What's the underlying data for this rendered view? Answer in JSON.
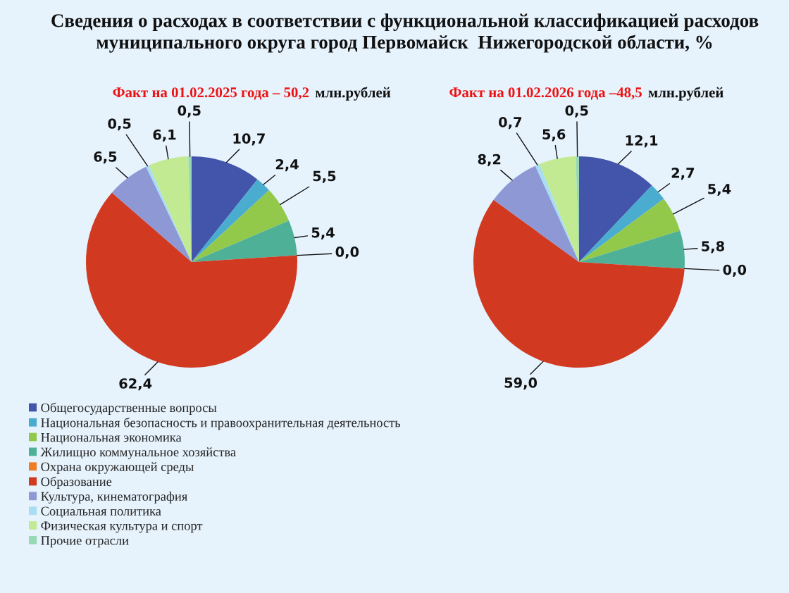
{
  "chart_data": [
    {
      "type": "pie",
      "title": "Сведения о расходах в соответствии с функциональной классификацией расходов\nмуниципального округа город Первомайск  Нижегородской области, %",
      "subtitle": "Факт на 01.02.2025 года – 50,2",
      "annotations": [
        "млн.рублей"
      ],
      "legend": "bottom",
      "categories": [
        "Общегосударственные вопросы",
        "Национальная безопасность и правоохранительная деятельность",
        "Национальная экономика",
        "Жилищно коммунальное хозяйства",
        "Охрана окружающей среды",
        "Образование",
        "Культура, кинематография",
        "Социальная политика",
        "Физическая культура и спорт",
        "Прочие отрасли"
      ],
      "values": [
        10.7,
        2.4,
        5.5,
        5.4,
        0.0,
        62.4,
        6.5,
        0.5,
        6.1,
        0.5
      ],
      "value_labels": [
        "10,7",
        "2,4",
        "5,5",
        "5,4",
        "0,0",
        "62,4",
        "6,5",
        "0,5",
        "6,1",
        "0,5"
      ],
      "colors": [
        "#4355ab",
        "#4aadd0",
        "#92c94a",
        "#4eb197",
        "#ef7d26",
        "#d13a21",
        "#8e98d5",
        "#a8ddf2",
        "#c2ea93",
        "#95d9b5"
      ]
    },
    {
      "type": "pie",
      "subtitle": "Факт на 01.02.2026 года –48,5",
      "annotations": [
        "млн.рублей"
      ],
      "categories": [
        null,
        null,
        null,
        null,
        null,
        null,
        null,
        null,
        null,
        null
      ],
      "values": [
        12.1,
        2.7,
        5.4,
        5.8,
        0.0,
        59.0,
        8.2,
        0.7,
        5.6,
        0.5
      ],
      "value_labels": [
        "12,1",
        "2,7",
        "5,4",
        "5,8",
        "0,0",
        "59,0",
        "8,2",
        "0,7",
        "5,6",
        "0,5"
      ],
      "colors": [
        "#4355ab",
        "#4aadd0",
        "#92c94a",
        "#4eb197",
        "#ef7d26",
        "#d13a21",
        "#8e98d5",
        "#a8ddf2",
        "#c2ea93",
        "#95d9b5"
      ]
    }
  ]
}
